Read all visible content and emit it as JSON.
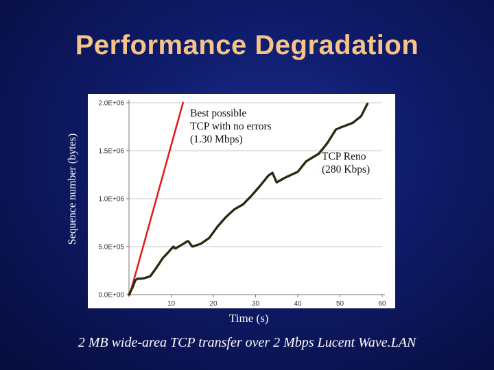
{
  "slide": {
    "title": "Performance Degradation",
    "caption": "2 MB wide-area TCP transfer over 2 Mbps Lucent Wave.LAN"
  },
  "chart_data": {
    "type": "line",
    "title": "",
    "xlabel": "Time (s)",
    "ylabel": "Sequence number (bytes)",
    "xlim": [
      0,
      60
    ],
    "ylim": [
      0,
      2000000
    ],
    "x_ticks": [
      {
        "value": 0,
        "label": ""
      },
      {
        "value": 10,
        "label": "10"
      },
      {
        "value": 20,
        "label": "20"
      },
      {
        "value": 30,
        "label": "30"
      },
      {
        "value": 40,
        "label": "40"
      },
      {
        "value": 50,
        "label": "50"
      },
      {
        "value": 60,
        "label": "60"
      }
    ],
    "y_ticks": [
      {
        "value": 0,
        "label": "0.0E+00"
      },
      {
        "value": 500000,
        "label": "5.0E+05"
      },
      {
        "value": 1000000,
        "label": "1.0E+06"
      },
      {
        "value": 1500000,
        "label": "1.5E+06"
      },
      {
        "value": 2000000,
        "label": "2.0E+06"
      }
    ],
    "series": [
      {
        "name": "Best possible TCP with no errors (1.30 Mbps)",
        "color": "#e02020",
        "points": [
          [
            0.2,
            0
          ],
          [
            12.8,
            2000000
          ]
        ]
      },
      {
        "name": "TCP Reno (280 Kbps)",
        "color": "#2a2a12",
        "points": [
          [
            0,
            0
          ],
          [
            0.8,
            70000
          ],
          [
            1.5,
            150000
          ],
          [
            2.0,
            165000
          ],
          [
            3.5,
            170000
          ],
          [
            5,
            190000
          ],
          [
            6.5,
            280000
          ],
          [
            8,
            380000
          ],
          [
            9.5,
            450000
          ],
          [
            10.5,
            500000
          ],
          [
            11,
            480000
          ],
          [
            12.5,
            520000
          ],
          [
            14,
            560000
          ],
          [
            15,
            500000
          ],
          [
            17,
            530000
          ],
          [
            19,
            590000
          ],
          [
            21,
            710000
          ],
          [
            23,
            810000
          ],
          [
            25,
            890000
          ],
          [
            27,
            940000
          ],
          [
            29,
            1030000
          ],
          [
            31,
            1130000
          ],
          [
            33,
            1240000
          ],
          [
            34,
            1270000
          ],
          [
            35,
            1170000
          ],
          [
            37,
            1220000
          ],
          [
            40,
            1280000
          ],
          [
            42,
            1390000
          ],
          [
            45,
            1470000
          ],
          [
            47,
            1580000
          ],
          [
            49,
            1720000
          ],
          [
            50,
            1740000
          ],
          [
            53,
            1790000
          ],
          [
            55,
            1860000
          ],
          [
            56.5,
            1990000
          ]
        ]
      }
    ],
    "annotations": [
      {
        "id": "best",
        "lines": [
          "Best possible",
          "TCP with no errors",
          "(1.30 Mbps)"
        ]
      },
      {
        "id": "reno",
        "lines": [
          "TCP Reno",
          "(280 Kbps)"
        ]
      }
    ]
  },
  "colors": {
    "title": "#f6c487",
    "background": "#0e1a66",
    "grid": "#b8b8b8",
    "axis": "#777777"
  }
}
